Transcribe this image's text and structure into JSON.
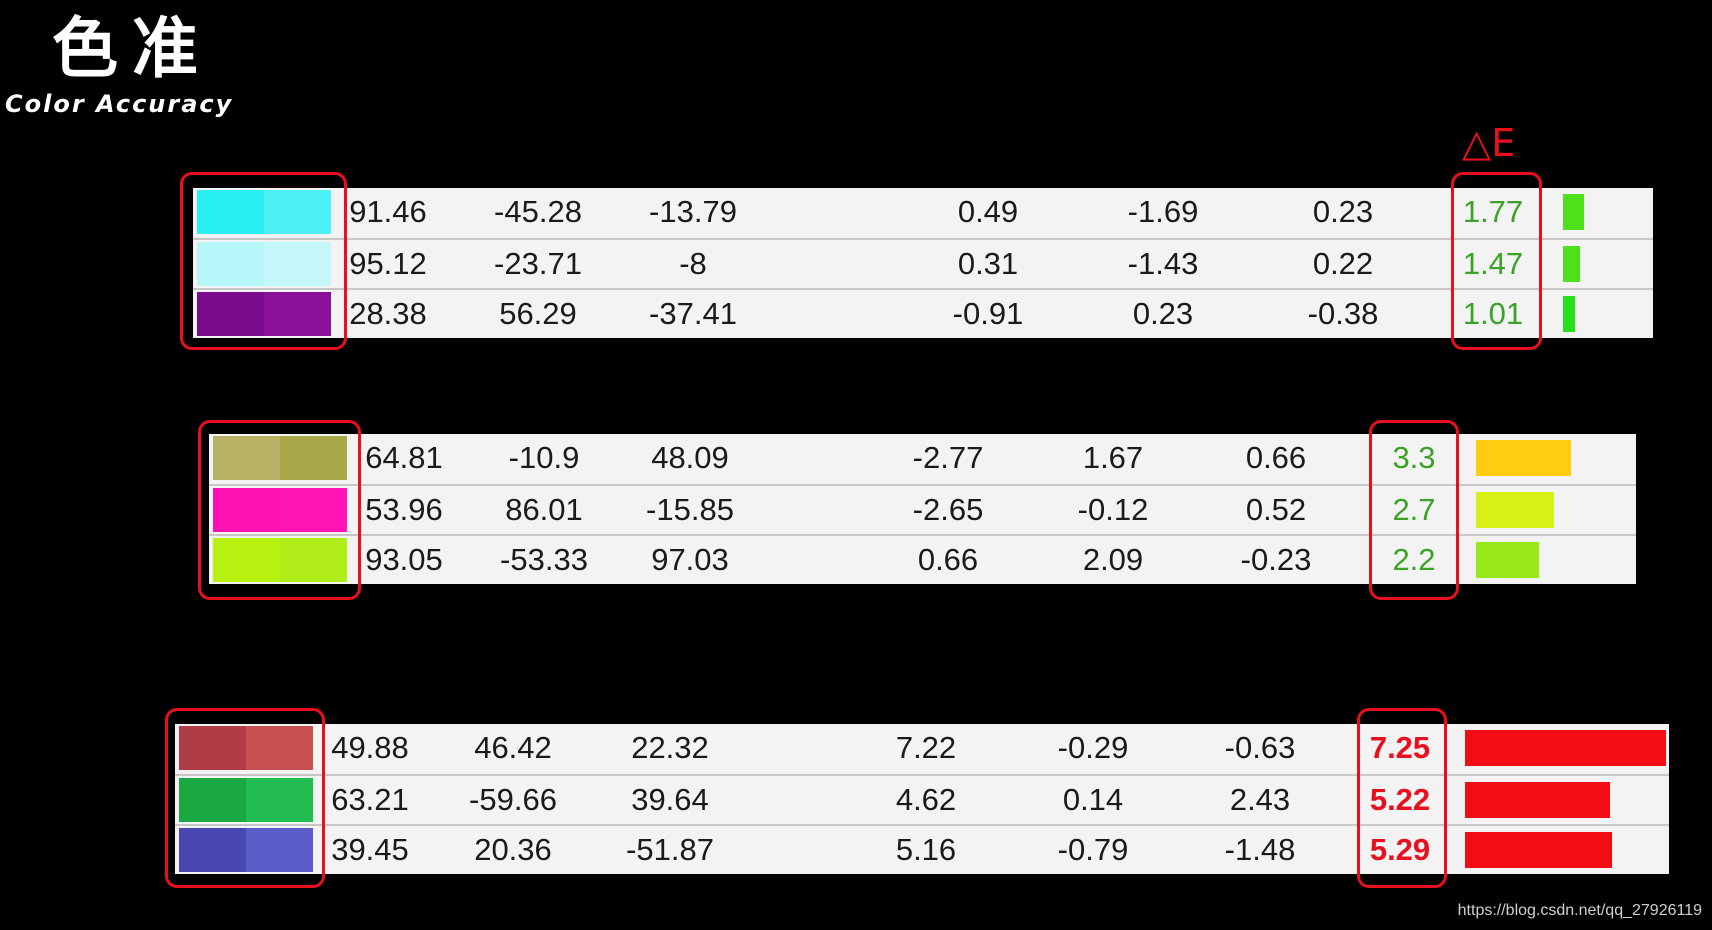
{
  "title_cn": "色准",
  "title_en": "Color Accuracy",
  "delta_e_label": "△E",
  "watermark": "https://blog.csdn.net/qq_27926119",
  "groups": [
    {
      "rows": [
        {
          "swatch": [
            "#2af0f2",
            "#4ff2f4"
          ],
          "values": [
            "91.46",
            "-45.28",
            "-13.79",
            "0.49",
            "-1.69",
            "0.23"
          ],
          "delta_e": "1.77",
          "de_color": "#3aa327",
          "bar_fraction": 0.244,
          "bar_color": "#4ee01a"
        },
        {
          "swatch": [
            "#b6f6f8",
            "#c4f8fa"
          ],
          "values": [
            "95.12",
            "-23.71",
            "-8",
            "0.31",
            "-1.43",
            "0.22"
          ],
          "delta_e": "1.47",
          "de_color": "#3aa327",
          "bar_fraction": 0.203,
          "bar_color": "#4ee01a"
        },
        {
          "swatch": [
            "#7c0a8c",
            "#8a1098"
          ],
          "values": [
            "28.38",
            "56.29",
            "-37.41",
            "-0.91",
            "0.23",
            "-0.38"
          ],
          "delta_e": "1.01",
          "de_color": "#3aa327",
          "bar_fraction": 0.139,
          "bar_color": "#28e01a"
        }
      ]
    },
    {
      "rows": [
        {
          "swatch": [
            "#b8b266",
            "#a8a848"
          ],
          "values": [
            "64.81",
            "-10.9",
            "48.09",
            "-2.77",
            "1.67",
            "0.66"
          ],
          "delta_e": "3.3",
          "de_color": "#3aa327",
          "bar_fraction": 0.455,
          "bar_color": "#ffcc10"
        },
        {
          "swatch": [
            "#ff10b0",
            "#ff14b4"
          ],
          "values": [
            "53.96",
            "86.01",
            "-15.85",
            "-2.65",
            "-0.12",
            "0.52"
          ],
          "delta_e": "2.7",
          "de_color": "#3aa327",
          "bar_fraction": 0.372,
          "bar_color": "#d8f014"
        },
        {
          "swatch": [
            "#b8f010",
            "#b0ec18"
          ],
          "values": [
            "93.05",
            "-53.33",
            "97.03",
            "0.66",
            "2.09",
            "-0.23"
          ],
          "delta_e": "2.2",
          "de_color": "#3aa327",
          "bar_fraction": 0.303,
          "bar_color": "#98e81a"
        }
      ]
    },
    {
      "rows": [
        {
          "swatch": [
            "#b03c46",
            "#c85050"
          ],
          "values": [
            "49.88",
            "46.42",
            "22.32",
            "7.22",
            "-0.29",
            "-0.63"
          ],
          "delta_e": "7.25",
          "de_color": "#e8101c",
          "bar_fraction": 1.0,
          "bar_color": "#f40c14"
        },
        {
          "swatch": [
            "#1aa840",
            "#22bc50"
          ],
          "values": [
            "63.21",
            "-59.66",
            "39.64",
            "4.62",
            "0.14",
            "2.43"
          ],
          "delta_e": "5.22",
          "de_color": "#e8101c",
          "bar_fraction": 0.72,
          "bar_color": "#f40c14"
        },
        {
          "swatch": [
            "#4848b0",
            "#5c5cc8"
          ],
          "values": [
            "39.45",
            "20.36",
            "-51.87",
            "5.16",
            "-0.79",
            "-1.48"
          ],
          "delta_e": "5.29",
          "de_color": "#e8101c",
          "bar_fraction": 0.73,
          "bar_color": "#f40c14"
        }
      ]
    }
  ]
}
